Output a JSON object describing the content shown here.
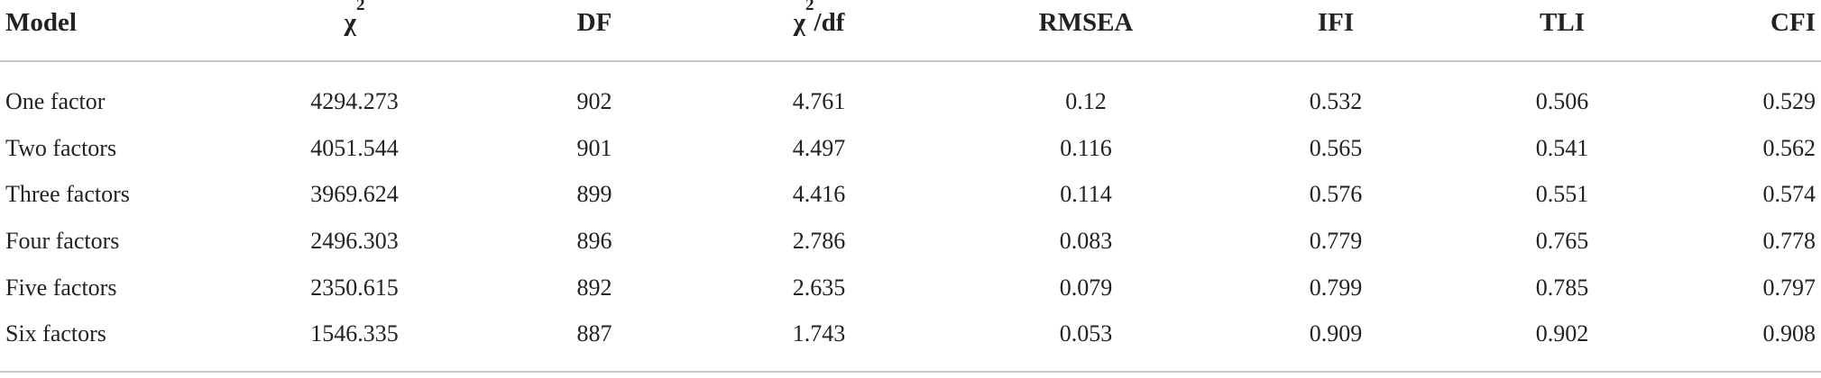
{
  "table": {
    "header": [
      {
        "text": "Model"
      },
      {
        "text": "χ",
        "sup": "2"
      },
      {
        "text": "DF"
      },
      {
        "text": "χ",
        "sup": "2",
        "after": "/df"
      },
      {
        "text": "RMSEA"
      },
      {
        "text": "IFI"
      },
      {
        "text": "TLI"
      },
      {
        "text": "CFI"
      }
    ],
    "rows": [
      [
        "One factor",
        "4294.273",
        "902",
        "4.761",
        "0.12",
        "0.532",
        "0.506",
        "0.529"
      ],
      [
        "Two factors",
        "4051.544",
        "901",
        "4.497",
        "0.116",
        "0.565",
        "0.541",
        "0.562"
      ],
      [
        "Three factors",
        "3969.624",
        "899",
        "4.416",
        "0.114",
        "0.576",
        "0.551",
        "0.574"
      ],
      [
        "Four factors",
        "2496.303",
        "896",
        "2.786",
        "0.083",
        "0.779",
        "0.765",
        "0.778"
      ],
      [
        "Five factors",
        "2350.615",
        "892",
        "2.635",
        "0.079",
        "0.799",
        "0.785",
        "0.797"
      ],
      [
        "Six factors",
        "1546.335",
        "887",
        "1.743",
        "0.053",
        "0.909",
        "0.902",
        "0.908"
      ]
    ]
  }
}
